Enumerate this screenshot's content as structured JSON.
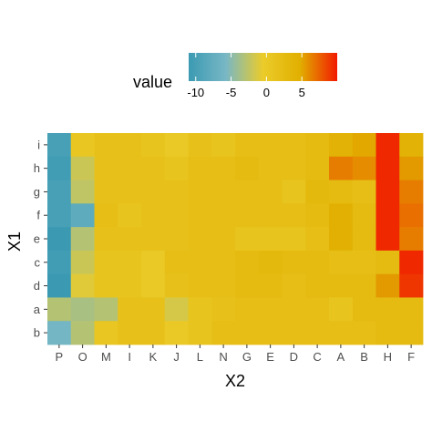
{
  "chart_data": {
    "type": "heatmap",
    "xlabel": "X2",
    "ylabel": "X1",
    "x_categories": [
      "P",
      "O",
      "M",
      "I",
      "K",
      "J",
      "L",
      "N",
      "G",
      "E",
      "D",
      "C",
      "A",
      "B",
      "H",
      "F"
    ],
    "y_categories": [
      "i",
      "h",
      "g",
      "f",
      "e",
      "c",
      "d",
      "a",
      "b"
    ],
    "values": [
      [
        -10.0,
        0.5,
        1.5,
        1.5,
        1.0,
        0.0,
        1.5,
        1.0,
        2.0,
        2.0,
        2.0,
        2.5,
        4.0,
        5.0,
        9.5,
        4.0
      ],
      [
        -10.5,
        -2.0,
        1.5,
        1.5,
        1.5,
        1.0,
        2.0,
        2.0,
        2.5,
        2.0,
        2.0,
        2.5,
        6.5,
        6.0,
        9.5,
        5.5
      ],
      [
        -10.0,
        -2.5,
        1.5,
        1.5,
        1.5,
        1.5,
        2.0,
        2.0,
        2.0,
        2.0,
        1.0,
        3.0,
        2.5,
        2.0,
        9.5,
        6.5
      ],
      [
        -10.0,
        -8.0,
        2.0,
        1.0,
        1.5,
        1.5,
        2.0,
        2.0,
        2.0,
        2.0,
        2.0,
        2.5,
        4.5,
        2.5,
        9.5,
        7.0
      ],
      [
        -11.0,
        -3.0,
        1.5,
        1.5,
        1.5,
        1.5,
        2.0,
        2.0,
        1.0,
        1.0,
        1.0,
        2.0,
        4.5,
        2.5,
        9.5,
        6.5
      ],
      [
        -10.5,
        -2.0,
        1.0,
        1.0,
        0.0,
        2.0,
        2.0,
        2.0,
        2.5,
        3.0,
        2.5,
        2.5,
        2.0,
        2.0,
        2.5,
        9.5
      ],
      [
        -11.0,
        -1.0,
        1.0,
        1.0,
        0.0,
        1.5,
        2.0,
        2.0,
        2.5,
        2.5,
        2.0,
        2.5,
        2.5,
        2.5,
        5.5,
        9.0
      ],
      [
        -3.0,
        -3.5,
        -3.0,
        1.5,
        1.5,
        -1.5,
        1.0,
        1.5,
        2.0,
        2.0,
        2.0,
        2.0,
        1.0,
        2.5,
        2.5,
        2.5
      ],
      [
        -6.0,
        -3.0,
        0.5,
        1.5,
        1.5,
        0.0,
        1.0,
        2.0,
        2.0,
        2.0,
        2.0,
        2.0,
        2.0,
        2.0,
        2.5,
        2.5
      ]
    ],
    "legend": {
      "title": "value",
      "ticks": [
        -10,
        -5,
        0,
        5
      ],
      "ticks_text": [
        "-10",
        "-5",
        "0",
        "5"
      ],
      "range": [
        -11,
        10
      ],
      "colors": [
        "#3b9ab2",
        "#78b7c5",
        "#ebcc2a",
        "#e1af00",
        "#f21a00"
      ],
      "position": "top"
    },
    "grid": false
  }
}
